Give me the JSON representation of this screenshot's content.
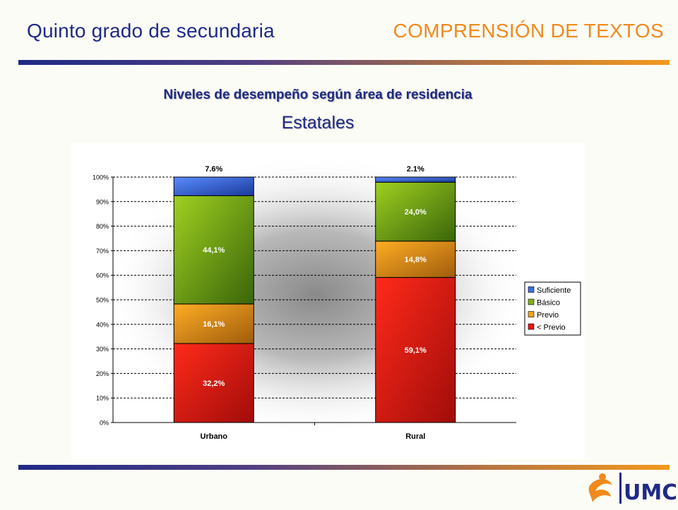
{
  "header": {
    "left_title": "Quinto grado de secundaria",
    "right_title": "COMPRENSIÓN DE TEXTOS"
  },
  "subtitle": "Niveles de desempeño según área de residencia",
  "subtitle2": "Estatales",
  "logo_text": "UMC",
  "colors": {
    "brand_blue": "#1f2a86",
    "brand_orange": "#f08a1c",
    "suficiente": "#3a6fe0",
    "basico": "#7fb018",
    "previo": "#f3a21c",
    "menos_previo": "#e81810"
  },
  "chart_data": {
    "type": "bar",
    "stacked": true,
    "percent_axis": true,
    "categories": [
      "Urbano",
      "Rural"
    ],
    "ylim": [
      0,
      100
    ],
    "yticks": [
      "0%",
      "10%",
      "20%",
      "30%",
      "40%",
      "50%",
      "60%",
      "70%",
      "80%",
      "90%",
      "100%"
    ],
    "grid": true,
    "legend_position": "right",
    "series": [
      {
        "name": "< Previo",
        "values": [
          32.2,
          59.1
        ],
        "labels": [
          "32,2%",
          "59,1%"
        ],
        "color": "#e81810"
      },
      {
        "name": "Previo",
        "values": [
          16.1,
          14.8
        ],
        "labels": [
          "16,1%",
          "14,8%"
        ],
        "color": "#f3a21c"
      },
      {
        "name": "Básico",
        "values": [
          44.1,
          24.0
        ],
        "labels": [
          "44,1%",
          "24,0%"
        ],
        "color": "#7fb018"
      },
      {
        "name": "Suficiente",
        "values": [
          7.6,
          2.1
        ],
        "labels": [
          "7.6%",
          "2.1%"
        ],
        "color": "#3a6fe0"
      }
    ],
    "legend_order": [
      "Suficiente",
      "Básico",
      "Previo",
      "< Previo"
    ]
  }
}
